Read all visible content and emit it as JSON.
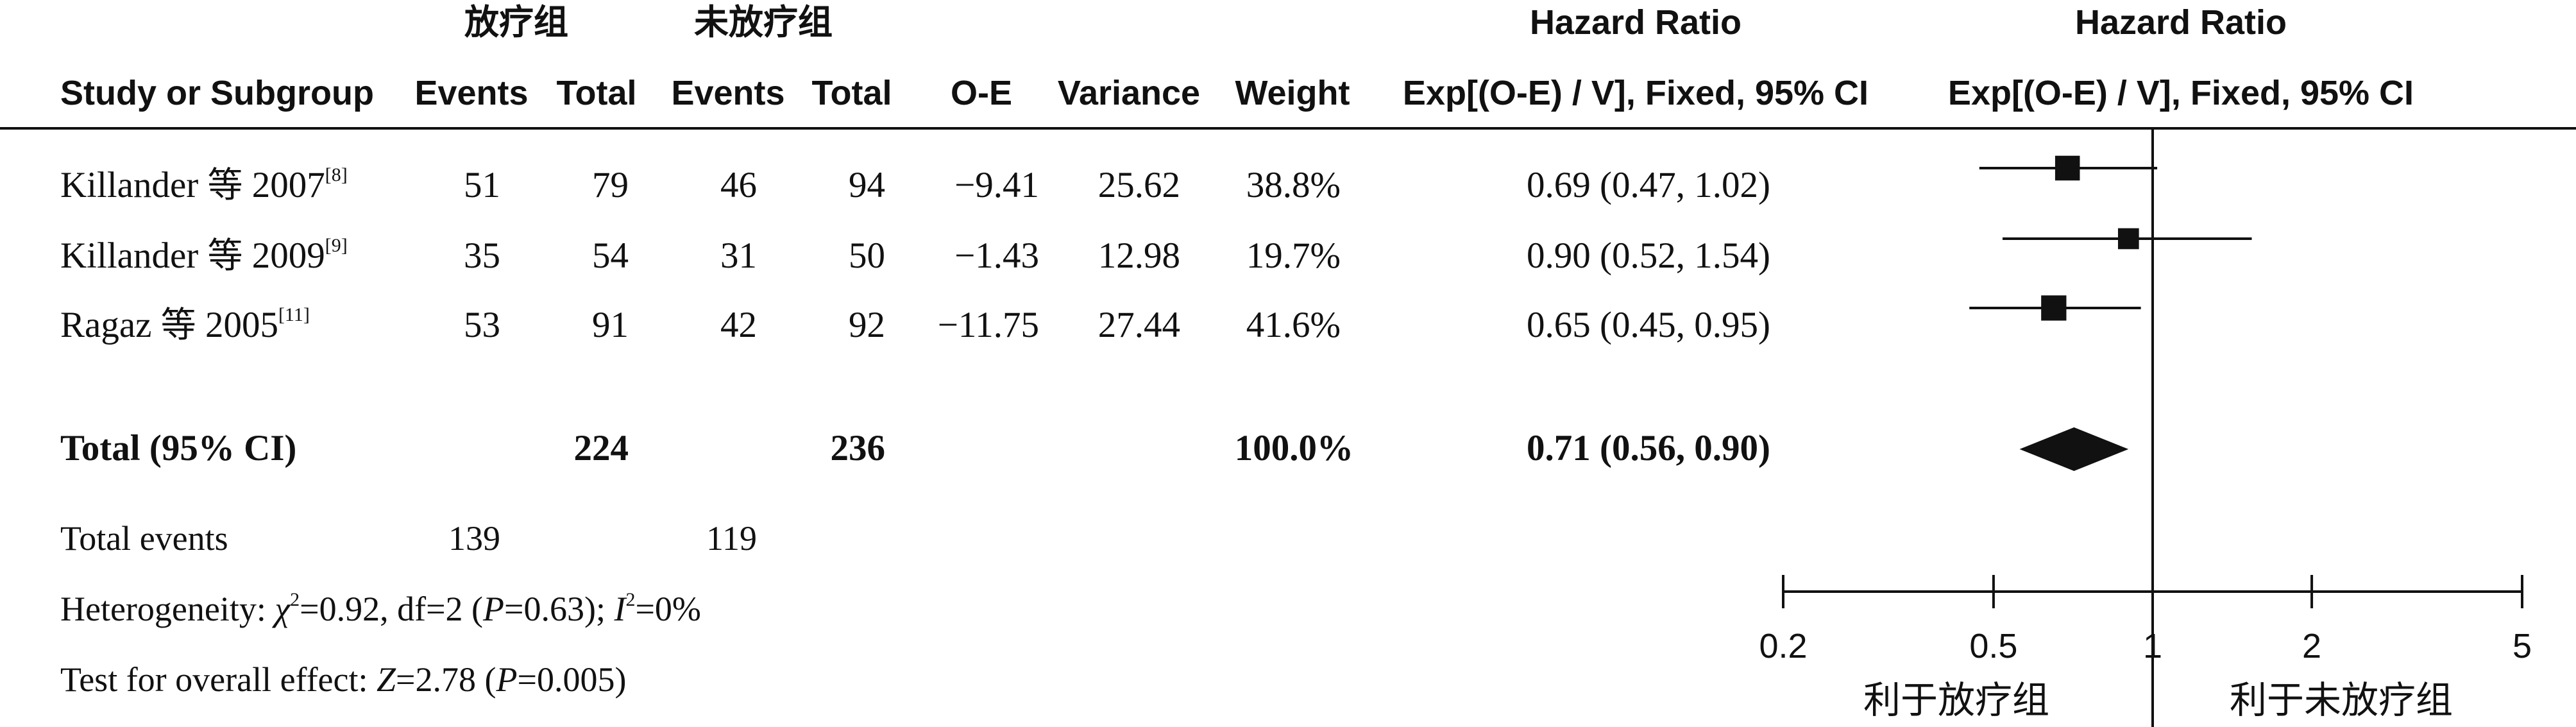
{
  "group_headers": {
    "treated": "放疗组",
    "untreated": "未放疗组"
  },
  "column_headers": {
    "study": "Study or Subgroup",
    "treated_events": "Events",
    "treated_total": "Total",
    "untreated_events": "Events",
    "untreated_total": "Total",
    "oe": "O-E",
    "variance": "Variance",
    "weight": "Weight",
    "hr": "Exp[(O-E) / V], Fixed, 95% CI",
    "plot": "Exp[(O-E) / V], Fixed, 95% CI"
  },
  "super_headers": {
    "hr": "Hazard Ratio",
    "plot": "Hazard Ratio"
  },
  "studies": [
    {
      "name": "Killander",
      "cjk": "等",
      "year": "2007",
      "ref": "[8]",
      "treated_events": "51",
      "treated_total": "79",
      "untreated_events": "46",
      "untreated_total": "94",
      "oe": "−9.41",
      "variance": "25.62",
      "weight": "38.8%",
      "hr_text": "0.69 (0.47, 1.02)"
    },
    {
      "name": "Killander",
      "cjk": "等",
      "year": "2009",
      "ref": "[9]",
      "treated_events": "35",
      "treated_total": "54",
      "untreated_events": "31",
      "untreated_total": "50",
      "oe": "−1.43",
      "variance": "12.98",
      "weight": "19.7%",
      "hr_text": "0.90 (0.52, 1.54)"
    },
    {
      "name": "Ragaz",
      "cjk": "等",
      "year": "2005",
      "ref": "[11]",
      "treated_events": "53",
      "treated_total": "91",
      "untreated_events": "42",
      "untreated_total": "92",
      "oe": "−11.75",
      "variance": "27.44",
      "weight": "41.6%",
      "hr_text": "0.65 (0.45, 0.95)"
    }
  ],
  "total": {
    "label": "Total (95% CI)",
    "treated_total": "224",
    "untreated_total": "236",
    "weight": "100.0%",
    "hr_text": "0.71 (0.56, 0.90)"
  },
  "total_events": {
    "label": "Total events",
    "treated": "139",
    "untreated": "119"
  },
  "heterogeneity": {
    "prefix": "Heterogeneity: ",
    "chi_symbol": "χ",
    "chi_value": "=0.92, df=2 (",
    "p_symbol": "P",
    "p_value": "=0.63); ",
    "i_symbol": "I",
    "i_value": "=0%"
  },
  "overall_effect": {
    "prefix": "Test for overall effect: ",
    "z_symbol": "Z",
    "z_value": "=2.78 (",
    "p_symbol": "P",
    "p_value": "=0.005)"
  },
  "axis": {
    "favours_left": "利于放疗组",
    "favours_right": "利于未放疗组"
  },
  "chart_data": {
    "type": "forest",
    "scale": "log",
    "xlim": [
      0.2,
      5
    ],
    "null_value": 1,
    "ticks": [
      {
        "value": 0.2,
        "label": "0.2"
      },
      {
        "value": 0.5,
        "label": "0.5"
      },
      {
        "value": 1,
        "label": "1"
      },
      {
        "value": 2,
        "label": "2"
      },
      {
        "value": 5,
        "label": "5"
      }
    ],
    "studies": [
      {
        "hr": 0.69,
        "lo": 0.47,
        "hi": 1.02,
        "weight": 38.8
      },
      {
        "hr": 0.9,
        "lo": 0.52,
        "hi": 1.54,
        "weight": 19.7
      },
      {
        "hr": 0.65,
        "lo": 0.45,
        "hi": 0.95,
        "weight": 41.6
      }
    ],
    "pooled": {
      "hr": 0.71,
      "lo": 0.56,
      "hi": 0.9
    },
    "marker_color": "#111111"
  }
}
